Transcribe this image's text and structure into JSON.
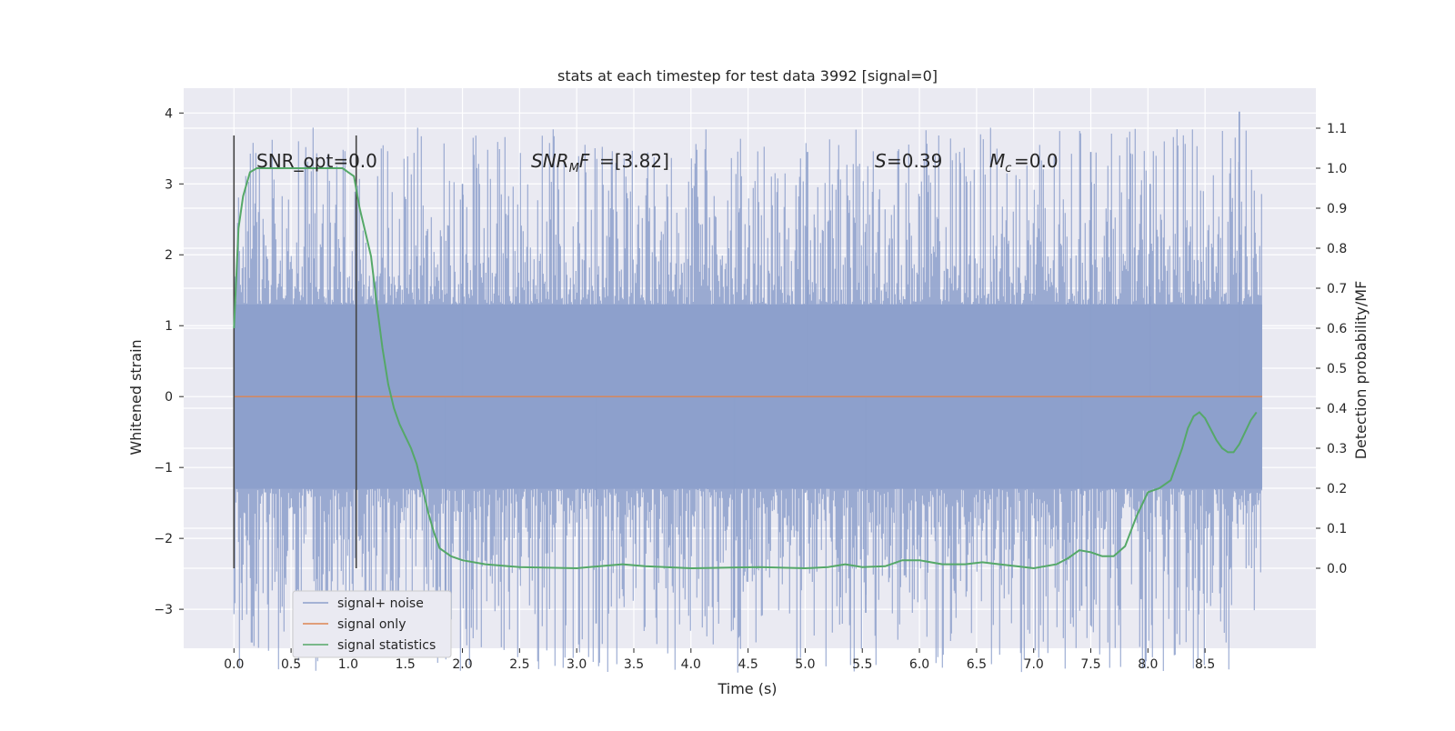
{
  "chart_data": {
    "type": "line",
    "title": "stats at each timestep for test data 3992 [signal=0]",
    "xlabel": "Time (s)",
    "ylabel": "Whitened strain",
    "ylabel_right": "Detection probability/MF",
    "xlim": [
      -0.44,
      9.47
    ],
    "ylim": [
      -3.55,
      4.35
    ],
    "ylim_right": [
      -0.2,
      1.2
    ],
    "x_ticks": [
      "0.0",
      "0.5",
      "1.0",
      "1.5",
      "2.0",
      "2.5",
      "3.0",
      "3.5",
      "4.0",
      "4.5",
      "5.0",
      "5.5",
      "6.0",
      "6.5",
      "7.0",
      "7.5",
      "8.0",
      "8.5"
    ],
    "y_ticks": [
      "4",
      "3",
      "2",
      "1",
      "0",
      "−1",
      "−2",
      "−3"
    ],
    "y_right_ticks": [
      "1.1",
      "1.0",
      "0.9",
      "0.8",
      "0.7",
      "0.6",
      "0.5",
      "0.4",
      "0.3",
      "0.2",
      "0.1",
      "0.0"
    ],
    "grid": true,
    "background": "#eaeaf2",
    "annotations": {
      "snr_opt": "SNR_opt=0.0",
      "snr_mf": "=[3.82]",
      "s_val": "=0.39",
      "mc_val": "=0.0"
    },
    "markers": {
      "vertical_lines_x": [
        0.0,
        1.07
      ]
    },
    "series": [
      {
        "name": "signal+ noise",
        "color": "#8c9fcb",
        "axis": "left",
        "x_range": [
          0.0,
          9.0
        ],
        "amplitude_envelope": {
          "typical": 2.0,
          "max": 4.02,
          "min": -3.2
        },
        "spikes": [
          [
            2.0,
            3.0
          ],
          [
            5.02,
            3.45
          ],
          [
            7.5,
            3.45
          ],
          [
            8.8,
            4.02
          ],
          [
            8.02,
            3.0
          ],
          [
            3.17,
            -3.2
          ],
          [
            4.38,
            -3.12
          ],
          [
            5.53,
            -3.05
          ],
          [
            7.42,
            -2.95
          ],
          [
            1.85,
            -2.85
          ]
        ]
      },
      {
        "name": "signal only",
        "color": "#dd8452",
        "axis": "left",
        "x": [
          0.0,
          9.0
        ],
        "y": [
          0.0,
          0.0
        ]
      },
      {
        "name": "signal statistics",
        "color": "#55a868",
        "axis": "right",
        "x": [
          0.0,
          0.04,
          0.08,
          0.14,
          0.2,
          0.3,
          0.5,
          0.7,
          0.85,
          0.95,
          1.0,
          1.05,
          1.1,
          1.15,
          1.2,
          1.25,
          1.3,
          1.35,
          1.4,
          1.45,
          1.5,
          1.55,
          1.6,
          1.65,
          1.7,
          1.75,
          1.8,
          1.9,
          2.0,
          2.2,
          2.5,
          3.0,
          3.2,
          3.4,
          3.6,
          4.0,
          4.4,
          4.6,
          5.0,
          5.2,
          5.35,
          5.5,
          5.7,
          5.85,
          6.0,
          6.2,
          6.4,
          6.55,
          6.7,
          6.85,
          7.0,
          7.2,
          7.3,
          7.4,
          7.5,
          7.6,
          7.7,
          7.8,
          7.9,
          8.0,
          8.1,
          8.2,
          8.3,
          8.35,
          8.4,
          8.45,
          8.5,
          8.6,
          8.65,
          8.7,
          8.75,
          8.8,
          8.9,
          8.95
        ],
        "y": [
          0.6,
          0.85,
          0.93,
          0.99,
          1.0,
          1.0,
          1.0,
          1.0,
          1.0,
          1.0,
          0.99,
          0.98,
          0.9,
          0.84,
          0.78,
          0.66,
          0.55,
          0.46,
          0.4,
          0.36,
          0.33,
          0.3,
          0.26,
          0.2,
          0.14,
          0.09,
          0.05,
          0.03,
          0.02,
          0.01,
          0.003,
          0.0,
          0.005,
          0.01,
          0.005,
          0.0,
          0.002,
          0.003,
          0.0,
          0.003,
          0.01,
          0.003,
          0.005,
          0.02,
          0.02,
          0.01,
          0.01,
          0.015,
          0.01,
          0.005,
          0.0,
          0.01,
          0.025,
          0.045,
          0.04,
          0.03,
          0.03,
          0.055,
          0.13,
          0.19,
          0.2,
          0.22,
          0.3,
          0.35,
          0.38,
          0.39,
          0.375,
          0.32,
          0.3,
          0.29,
          0.29,
          0.31,
          0.37,
          0.39
        ]
      }
    ],
    "legend": {
      "location": "lower-left",
      "entries": [
        "signal+ noise",
        "signal only",
        "signal statistics"
      ]
    }
  }
}
